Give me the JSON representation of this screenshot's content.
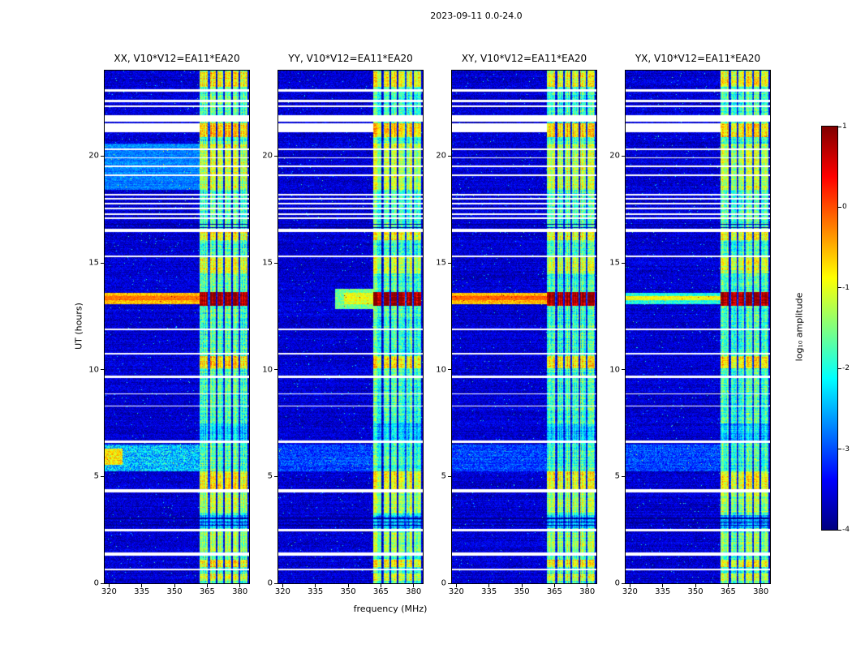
{
  "chart_data": {
    "type": "heatmap",
    "title": "2023-09-11 0.0-24.0",
    "xlabel": "frequency (MHz)",
    "ylabel": "UT (hours)",
    "xlim": [
      318,
      384.2
    ],
    "ylim": [
      0,
      24
    ],
    "xticks": [
      320,
      335,
      350,
      365,
      380
    ],
    "yticks": [
      0,
      5,
      10,
      15,
      20
    ],
    "panels": [
      {
        "id": "XX",
        "title": "XX, V10*V12=EA11*EA20"
      },
      {
        "id": "YY",
        "title": "YY, V10*V12=EA11*EA20"
      },
      {
        "id": "XY",
        "title": "XY, V10*V12=EA11*EA20"
      },
      {
        "id": "YX",
        "title": "YX, V10*V12=EA11*EA20"
      }
    ],
    "colorbar": {
      "label": "log₁₀ amplitude",
      "min": -4,
      "max": 1,
      "ticks": [
        1,
        0,
        -1,
        -2,
        -3,
        -4
      ],
      "colormap": "jet",
      "stops": [
        "#800000",
        "#ff0000",
        "#ff8000",
        "#ffff00",
        "#80ff80",
        "#00ffff",
        "#0080ff",
        "#0000ff",
        "#000080"
      ]
    },
    "rfi_band_mhz": [
      361.5,
      383.5
    ],
    "background_level": -3.6,
    "features": [
      {
        "t": [
          0,
          24
        ],
        "level": -3.6,
        "noise": 0.35
      },
      {
        "t": [
          18.4,
          20.6
        ],
        "f": [
          318,
          361.5
        ],
        "level": -2.75,
        "noise": 0.3,
        "panels": [
          "XX"
        ]
      },
      {
        "t": [
          5.25,
          6.5
        ],
        "level": -3.05,
        "noise": 0.45,
        "panels": [
          "YY",
          "XY",
          "YX"
        ]
      },
      {
        "t": [
          5.25,
          6.5
        ],
        "level": -2.4,
        "noise": 0.7,
        "panels": [
          "XX"
        ]
      },
      {
        "t": [
          5.55,
          6.3
        ],
        "f": [
          318,
          326
        ],
        "level": -0.8,
        "noise": 0.5,
        "panels": [
          "XX"
        ]
      },
      {
        "t": [
          0,
          24
        ],
        "f": [
          361.5,
          383.5
        ],
        "level": -1.8,
        "noise": 0.5
      },
      {
        "t": [
          23.25,
          23.95
        ],
        "f": [
          361.5,
          383.5
        ],
        "level": -0.9,
        "noise": 0.4
      },
      {
        "t": [
          20.9,
          21.55
        ],
        "f": [
          361.5,
          383.5
        ],
        "level": -0.7,
        "noise": 0.4
      },
      {
        "t": [
          18.4,
          20.6
        ],
        "f": [
          361.5,
          383.5
        ],
        "level": -1.2,
        "noise": 0.4
      },
      {
        "t": [
          16.05,
          16.45
        ],
        "f": [
          361.5,
          383.5
        ],
        "level": -0.9,
        "noise": 0.4
      },
      {
        "t": [
          14.5,
          15.25
        ],
        "f": [
          361.5,
          383.5
        ],
        "level": -1.1,
        "noise": 0.4
      },
      {
        "t": [
          10.05,
          10.65
        ],
        "f": [
          361.5,
          383.5
        ],
        "level": -0.8,
        "noise": 0.4
      },
      {
        "t": [
          6.7,
          7.5
        ],
        "f": [
          361.5,
          383.5
        ],
        "level": -2.3,
        "noise": 0.4
      },
      {
        "t": [
          4.4,
          5.25
        ],
        "f": [
          361.5,
          383.5
        ],
        "level": -0.9,
        "noise": 0.4
      },
      {
        "t": [
          3.3,
          4.25
        ],
        "f": [
          361.5,
          383.5
        ],
        "level": -1.3,
        "noise": 0.4
      },
      {
        "t": [
          2.6,
          3.2
        ],
        "f": [
          361.5,
          383.5
        ],
        "level": -2.5,
        "noise": 0.4
      },
      {
        "t": [
          1.5,
          2.4
        ],
        "f": [
          361.5,
          383.5
        ],
        "level": -1.4,
        "noise": 0.4
      },
      {
        "t": [
          0.75,
          1.1
        ],
        "f": [
          361.5,
          383.5
        ],
        "level": -0.9,
        "noise": 0.4
      },
      {
        "t": [
          0.1,
          0.45
        ],
        "f": [
          361.5,
          383.5
        ],
        "level": -1.1,
        "noise": 0.4
      },
      {
        "t": [
          12.85,
          13.8
        ],
        "f": [
          344,
          361.5
        ],
        "level": -1.6,
        "noise": 0.4,
        "panels": [
          "YY"
        ]
      },
      {
        "t": [
          13.05,
          13.6
        ],
        "f": [
          318,
          361.5
        ],
        "level": -0.55,
        "noise": 0.35,
        "panels": [
          "XX",
          "XY"
        ]
      },
      {
        "t": [
          13.05,
          13.6
        ],
        "f": [
          348,
          361.5
        ],
        "level": -1.0,
        "noise": 0.35,
        "panels": [
          "YY"
        ]
      },
      {
        "t": [
          13.05,
          13.6
        ],
        "f": [
          318,
          361.5
        ],
        "level": -2.0,
        "noise": 0.4,
        "panels": [
          "YX"
        ]
      },
      {
        "t": [
          13.25,
          13.43
        ],
        "f": [
          318,
          361.5
        ],
        "level": -0.1,
        "noise": 0.2,
        "panels": [
          "XX",
          "XY"
        ]
      },
      {
        "t": [
          13.24,
          13.44
        ],
        "f": [
          318,
          361.5
        ],
        "level": -0.9,
        "noise": 0.3,
        "panels": [
          "YX"
        ]
      },
      {
        "t": [
          13.0,
          13.65
        ],
        "f": [
          361.5,
          383.5
        ],
        "level": 0.85,
        "noise": 0.25
      },
      {
        "t": [
          0,
          24
        ],
        "f": [
          365.4,
          366.2
        ],
        "level": -3.3,
        "noise": 0.3
      },
      {
        "t": [
          0,
          24
        ],
        "f": [
          368.9,
          369.7
        ],
        "level": -3.3,
        "noise": 0.3
      },
      {
        "t": [
          0,
          24
        ],
        "f": [
          372.4,
          373.2
        ],
        "level": -3.3,
        "noise": 0.3
      },
      {
        "t": [
          0,
          24
        ],
        "f": [
          375.9,
          376.7
        ],
        "level": -3.3,
        "noise": 0.3
      },
      {
        "t": [
          0,
          24
        ],
        "f": [
          379.4,
          380.2
        ],
        "level": -3.3,
        "noise": 0.3
      },
      {
        "t": [
          0,
          24
        ],
        "f": [
          383.5,
          384.2
        ],
        "level": -3.6,
        "noise": 0.3
      },
      {
        "t": [
          2.68,
          2.74
        ],
        "level": -3.95,
        "noise": 0.1
      },
      {
        "t": [
          2.84,
          2.9
        ],
        "level": -3.95,
        "noise": 0.1
      },
      {
        "t": [
          3.0,
          3.06
        ],
        "level": -3.95,
        "noise": 0.1
      },
      {
        "t": [
          16.62,
          16.68
        ],
        "level": -3.9,
        "noise": 0.1
      },
      {
        "t": [
          16.78,
          16.84
        ],
        "level": -3.9,
        "noise": 0.1
      },
      {
        "gap": true,
        "t": [
          23.02,
          23.12
        ]
      },
      {
        "gap": true,
        "t": [
          22.52,
          22.62
        ]
      },
      {
        "gap": true,
        "t": [
          22.3,
          22.38
        ]
      },
      {
        "gap": true,
        "t": [
          21.6,
          21.9
        ]
      },
      {
        "gap": true,
        "t": [
          21.1,
          21.55
        ],
        "f": [
          318,
          361.5
        ]
      },
      {
        "gap": true,
        "t": [
          20.28,
          20.34
        ]
      },
      {
        "gap": true,
        "t": [
          19.88,
          19.94
        ]
      },
      {
        "gap": true,
        "t": [
          19.48,
          19.54
        ]
      },
      {
        "gap": true,
        "t": [
          19.08,
          19.14
        ]
      },
      {
        "gap": true,
        "t": [
          18.16,
          18.24
        ]
      },
      {
        "gap": true,
        "t": [
          17.96,
          18.04
        ]
      },
      {
        "gap": true,
        "t": [
          17.72,
          17.8
        ]
      },
      {
        "gap": true,
        "t": [
          17.5,
          17.58
        ]
      },
      {
        "gap": true,
        "t": [
          17.24,
          17.32
        ]
      },
      {
        "gap": true,
        "t": [
          17.04,
          17.12
        ]
      },
      {
        "gap": true,
        "t": [
          16.45,
          16.58
        ]
      },
      {
        "gap": true,
        "t": [
          15.28,
          15.36
        ]
      },
      {
        "gap": true,
        "t": [
          11.86,
          11.94
        ]
      },
      {
        "gap": true,
        "t": [
          10.72,
          10.78
        ]
      },
      {
        "gap": true,
        "t": [
          9.62,
          9.72
        ]
      },
      {
        "gap": true,
        "t": [
          8.84,
          8.9
        ]
      },
      {
        "gap": true,
        "t": [
          8.26,
          8.32
        ]
      },
      {
        "gap": true,
        "t": [
          6.58,
          6.68
        ]
      },
      {
        "gap": true,
        "t": [
          4.26,
          4.4
        ]
      },
      {
        "gap": true,
        "t": [
          2.44,
          2.56
        ]
      },
      {
        "gap": true,
        "t": [
          1.28,
          1.44
        ]
      },
      {
        "gap": true,
        "t": [
          0.6,
          0.68
        ]
      }
    ]
  }
}
